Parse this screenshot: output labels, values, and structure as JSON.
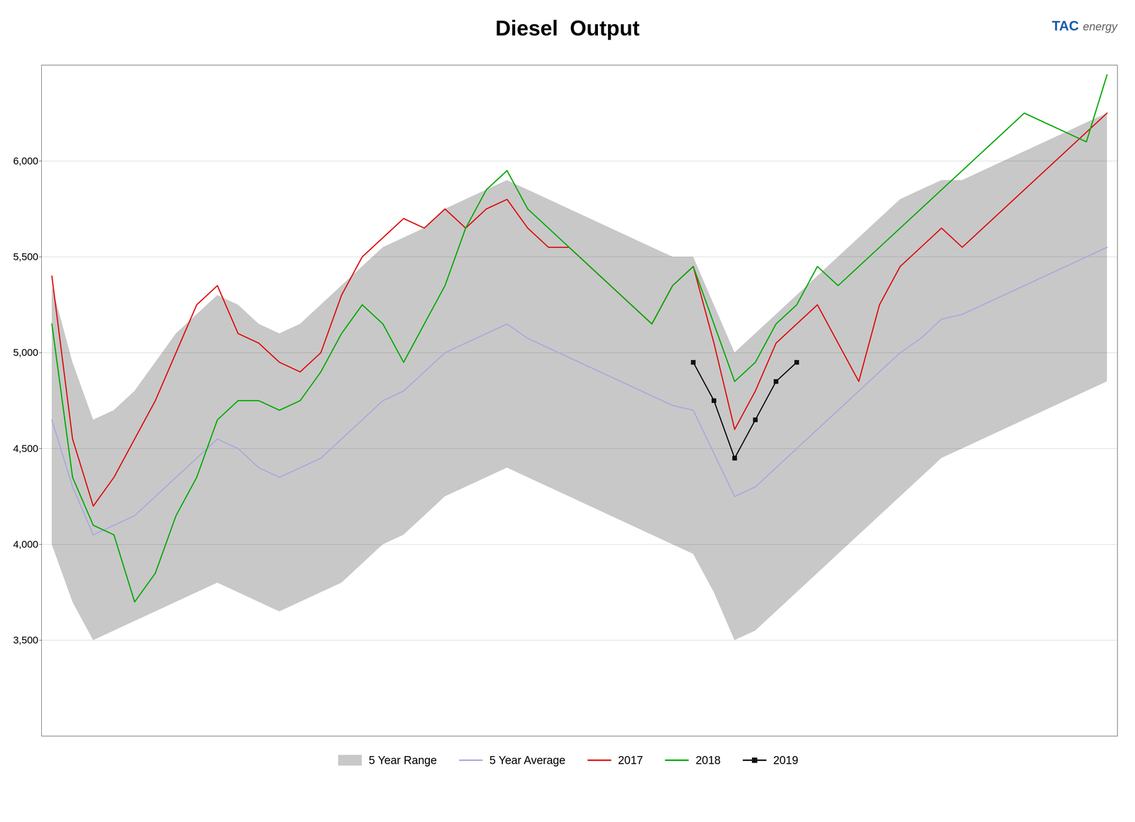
{
  "chart_data": {
    "type": "line",
    "title": "Diesel  Output",
    "annotations": [
      "TAC",
      "energy"
    ],
    "categories": [
      null,
      null,
      null,
      null,
      null,
      null,
      null,
      null,
      null,
      null,
      null,
      null,
      null,
      null,
      null,
      null,
      null,
      null,
      null,
      null,
      null,
      null,
      null,
      null,
      null,
      null,
      null,
      null,
      null,
      null,
      null,
      null,
      null,
      null,
      null,
      null,
      null,
      null,
      null,
      null,
      null,
      null,
      null,
      null,
      null,
      null,
      null,
      null,
      null,
      null,
      null,
      null
    ],
    "ylim": [
      3000,
      6500
    ],
    "yticks": [
      {
        "value": 3500,
        "label": "3,500"
      },
      {
        "value": 4000,
        "label": "4,000"
      },
      {
        "value": 4500,
        "label": "4,500"
      },
      {
        "value": 5000,
        "label": "5,000"
      },
      {
        "value": 5500,
        "label": "5,500"
      },
      {
        "value": 6000,
        "label": "6,000"
      }
    ],
    "grid": true,
    "legend": "bottom",
    "tick_labels": "y",
    "series": [
      {
        "name": "5 Year Range",
        "type": "area",
        "color": "#c8c8c8",
        "upper": [
          5350,
          4950,
          4650,
          4700,
          4800,
          4950,
          5100,
          5200,
          5300,
          5250,
          5150,
          5100,
          5150,
          5250,
          5350,
          5450,
          5550,
          5600,
          5650,
          5750,
          5800,
          5850,
          5900,
          5850,
          5800,
          5750,
          5700,
          5650,
          5600,
          5550,
          5500,
          5500,
          5250,
          5000,
          5100,
          5200,
          5300,
          5400,
          5500,
          5600,
          5700,
          5800,
          5850,
          5900,
          5900,
          5950,
          6000,
          6050,
          6100,
          6150,
          6200,
          6250
        ],
        "lower": [
          4000,
          3700,
          3500,
          3550,
          3600,
          3650,
          3700,
          3750,
          3800,
          3750,
          3700,
          3650,
          3700,
          3750,
          3800,
          3900,
          4000,
          4050,
          4150,
          4250,
          4300,
          4350,
          4400,
          4350,
          4300,
          4250,
          4200,
          4150,
          4100,
          4050,
          4000,
          3950,
          3750,
          3500,
          3550,
          3650,
          3750,
          3850,
          3950,
          4050,
          4150,
          4250,
          4350,
          4450,
          4500,
          4550,
          4600,
          4650,
          4700,
          4750,
          4800,
          4850
        ]
      },
      {
        "name": "5 Year Average",
        "type": "line",
        "color": "#aaaadd",
        "values": [
          4650,
          4300,
          4050,
          4100,
          4150,
          4250,
          4350,
          4450,
          4550,
          4500,
          4400,
          4350,
          4400,
          4450,
          4550,
          4650,
          4750,
          4800,
          4900,
          5000,
          5050,
          5100,
          5150,
          5075,
          5025,
          4975,
          4925,
          4875,
          4825,
          4775,
          4725,
          4700,
          4475,
          4250,
          4300,
          4400,
          4500,
          4600,
          4700,
          4800,
          4900,
          5000,
          5075,
          5175,
          5200,
          5250,
          5300,
          5350,
          5400,
          5450,
          5500,
          5550
        ]
      },
      {
        "name": "2017",
        "type": "line",
        "color": "#dd1111",
        "values": [
          5400,
          4550,
          4200,
          4350,
          4550,
          4750,
          5000,
          5250,
          5350,
          5100,
          5050,
          4950,
          4900,
          5000,
          5300,
          5500,
          5600,
          5700,
          5650,
          5750,
          5650,
          5750,
          5800,
          5650,
          5550,
          5550,
          5450,
          5350,
          5250,
          5150,
          5350,
          5450,
          5050,
          4600,
          4800,
          5050,
          5150,
          5250,
          5050,
          4850,
          5250,
          5450,
          5550,
          5650,
          5550,
          5650,
          5750,
          5850,
          5950,
          6050,
          6150,
          6250
        ]
      },
      {
        "name": "2018",
        "type": "line",
        "color": "#00aa00",
        "values": [
          5150,
          4350,
          4100,
          4050,
          3700,
          3850,
          4150,
          4350,
          4650,
          4750,
          4750,
          4700,
          4750,
          4900,
          5100,
          5250,
          5150,
          4950,
          5150,
          5350,
          5650,
          5850,
          5950,
          5750,
          5650,
          5550,
          5450,
          5350,
          5250,
          5150,
          5350,
          5450,
          5150,
          4850,
          4950,
          5150,
          5250,
          5450,
          5350,
          5450,
          5550,
          5650,
          5750,
          5850,
          5950,
          6050,
          6150,
          6250,
          6200,
          6150,
          6100,
          6450
        ]
      },
      {
        "name": "2019",
        "type": "line",
        "color": "#111111",
        "marker": "square",
        "values": [
          null,
          null,
          null,
          null,
          null,
          null,
          null,
          null,
          null,
          null,
          null,
          null,
          null,
          null,
          null,
          null,
          null,
          null,
          null,
          null,
          null,
          null,
          null,
          null,
          null,
          null,
          null,
          null,
          null,
          null,
          null,
          4950,
          4750,
          4450,
          4650,
          4850,
          4950,
          null,
          null,
          null,
          null,
          null,
          null,
          null,
          null,
          null,
          null,
          null,
          null,
          null,
          null,
          null
        ]
      }
    ]
  }
}
